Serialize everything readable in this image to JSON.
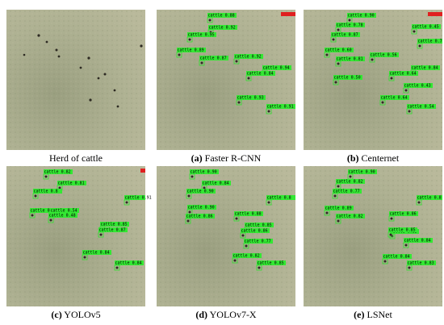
{
  "panels": [
    {
      "caption": "Herd of cattle",
      "detections": []
    },
    {
      "caption_label": "(a)",
      "caption": "Faster R-CNN",
      "detections": [
        "cattle 0.88",
        "cattle 0.92",
        "cattle 0.95",
        "cattle 0.89",
        "cattle 0.87",
        "cattle 0.92",
        "cattle 0.94",
        "cattle 0.84",
        "cattle 0.93",
        "cattle 0.91"
      ]
    },
    {
      "caption_label": "(b)",
      "caption": "Centernet",
      "detections": [
        "cattle 0.90",
        "cattle 0.78",
        "cattle 0.45",
        "cattle 0.87",
        "cattle 0.7",
        "cattle 0.60",
        "cattle 0.81",
        "cattle 0.50",
        "cattle 0.56",
        "cattle 0.84",
        "cattle 0.64",
        "cattle 0.43",
        "cattle 0.64",
        "cattle 0.54"
      ]
    },
    {
      "caption_label": "(c)",
      "caption": "YOLOv5",
      "detections": [
        "cattle 0.82",
        "cattle 0.81",
        "cattle 0.91",
        "cattle 0.8",
        "cattle 0.51",
        "cattle 0.54",
        "cattle 0.48",
        "cattle 0.85",
        "cattle 0.87",
        "cattle 0.84",
        "cattle 0.84"
      ]
    },
    {
      "caption_label": "(d)",
      "caption": "YOLOv7-X",
      "detections": [
        "cattle 0.90",
        "cattle 0.84",
        "cattle 0.90",
        "cattle 0.8",
        "cattle 0.90",
        "cattle 0.86",
        "cattle 0.88",
        "cattle 0.85",
        "cattle 0.86",
        "cattle 0.77",
        "cattle 0.82",
        "cattle 0.85"
      ]
    },
    {
      "caption_label": "(e)",
      "caption": "LSNet",
      "detections": [
        "cattle 0.90",
        "cattle 0.82",
        "cattle 0.77",
        "cattle 0.8",
        "cattle 0.89",
        "cattle 0.82",
        "cattle 0.86",
        "cattle 0.85",
        "cattle 0.85",
        "cattle 0.84",
        "cattle 0.84",
        "cattle 0.83"
      ]
    }
  ]
}
